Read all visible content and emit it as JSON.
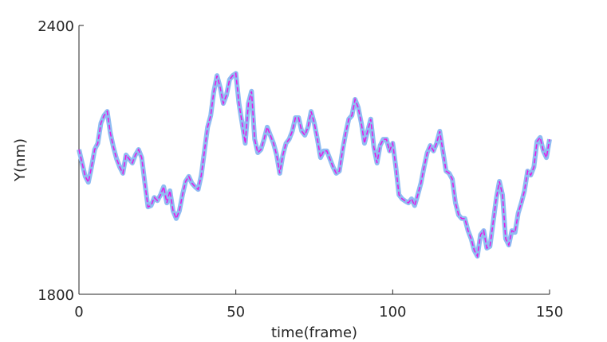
{
  "chart_data": {
    "type": "line",
    "xlabel": "time(frame)",
    "ylabel": "Y(nm)",
    "xlim": [
      0,
      150
    ],
    "xticks": [
      0,
      50,
      100,
      150
    ],
    "ylim": [
      1800,
      2400
    ],
    "yticks": [
      1800,
      2400
    ],
    "grid": false,
    "band_color": "#8fbcf2",
    "series": [
      {
        "color": "#e619e6",
        "x": [
          0,
          1,
          2,
          3,
          4,
          5,
          6,
          7,
          8,
          9,
          10,
          11,
          12,
          13,
          14,
          15,
          16,
          17,
          18,
          19,
          20,
          21,
          22,
          23,
          24,
          25,
          26,
          27,
          28,
          29,
          30,
          31,
          32,
          33,
          34,
          35,
          36,
          37,
          38,
          39,
          40,
          41,
          42,
          43,
          44,
          45,
          46,
          47,
          48,
          49,
          50,
          51,
          52,
          53,
          54,
          55,
          56,
          57,
          58,
          59,
          60,
          61,
          62,
          63,
          64,
          65,
          66,
          67,
          68,
          69,
          70,
          71,
          72,
          73,
          74,
          75,
          76,
          77,
          78,
          79,
          80,
          81,
          82,
          83,
          84,
          85,
          86,
          87,
          88,
          89,
          90,
          91,
          92,
          93,
          94,
          95,
          96,
          97,
          98,
          99,
          100,
          101,
          102,
          103,
          104,
          105,
          106,
          107,
          108,
          109,
          110,
          111,
          112,
          113,
          114,
          115,
          116,
          117,
          118,
          119,
          120,
          121,
          122,
          123,
          124,
          125,
          126,
          127,
          128,
          129,
          130,
          131,
          132,
          133,
          134,
          135,
          136,
          137,
          138,
          139,
          140,
          141,
          142,
          143,
          144,
          145,
          146,
          147,
          148,
          149,
          150
        ],
        "values": [
          2123,
          2093,
          2063,
          2050,
          2084,
          2123,
          2137,
          2182,
          2199,
          2208,
          2160,
          2128,
          2102,
          2084,
          2070,
          2111,
          2102,
          2093,
          2111,
          2123,
          2105,
          2048,
          1995,
          1998,
          2016,
          2009,
          2022,
          2040,
          2004,
          2031,
          1986,
          1969,
          1986,
          2022,
          2052,
          2063,
          2048,
          2040,
          2034,
          2066,
          2120,
          2173,
          2199,
          2253,
          2288,
          2262,
          2226,
          2244,
          2279,
          2288,
          2293,
          2226,
          2182,
          2137,
          2226,
          2253,
          2146,
          2116,
          2123,
          2146,
          2173,
          2155,
          2137,
          2111,
          2070,
          2111,
          2137,
          2146,
          2164,
          2194,
          2194,
          2164,
          2155,
          2173,
          2208,
          2182,
          2146,
          2105,
          2120,
          2120,
          2102,
          2084,
          2070,
          2075,
          2120,
          2159,
          2191,
          2199,
          2235,
          2217,
          2182,
          2137,
          2164,
          2191,
          2128,
          2093,
          2132,
          2146,
          2146,
          2120,
          2137,
          2084,
          2022,
          2013,
          2008,
          2004,
          2013,
          1998,
          2022,
          2048,
          2084,
          2116,
          2132,
          2120,
          2137,
          2164,
          2120,
          2075,
          2070,
          2057,
          2004,
          1977,
          1969,
          1969,
          1942,
          1924,
          1898,
          1885,
          1933,
          1942,
          1903,
          1907,
          1960,
          2013,
          2052,
          2022,
          1924,
          1910,
          1942,
          1938,
          1981,
          2004,
          2031,
          2075,
          2066,
          2084,
          2141,
          2150,
          2120,
          2105,
          2146
        ]
      }
    ]
  }
}
